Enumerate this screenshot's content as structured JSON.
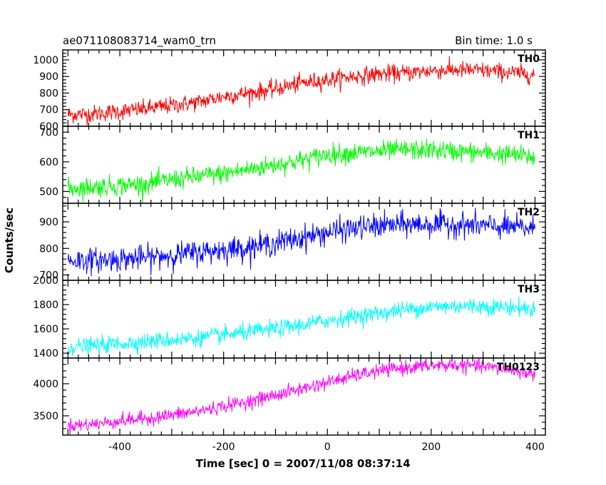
{
  "chart_data": {
    "type": "line",
    "title": "ae071108083714_wam0_trn",
    "subtitle": "Bin time: 1.0 s",
    "xlabel": "Time [sec] 0 = 2007/11/08 08:37:14",
    "ylabel": "Counts/sec",
    "xlim": [
      -510,
      420
    ],
    "xticks": [
      -400,
      -200,
      0,
      200,
      400
    ],
    "grid": false,
    "legend": "per-panel label, top-right",
    "panels": [
      {
        "name": "TH0",
        "color": "#ff0000",
        "ylim": [
          600,
          1060
        ],
        "yticks": [
          600,
          700,
          800,
          900,
          1000
        ],
        "noise": 34,
        "x": [
          -500,
          -450,
          -400,
          -350,
          -300,
          -250,
          -200,
          -150,
          -100,
          -50,
          0,
          50,
          100,
          150,
          200,
          250,
          300,
          350,
          400
        ],
        "y": [
          670,
          675,
          690,
          705,
          725,
          745,
          780,
          800,
          825,
          860,
          880,
          900,
          915,
          920,
          935,
          940,
          935,
          925,
          910
        ]
      },
      {
        "name": "TH1",
        "color": "#00ff00",
        "ylim": [
          460,
          720
        ],
        "yticks": [
          500,
          600,
          700
        ],
        "noise": 22,
        "x": [
          -500,
          -450,
          -400,
          -350,
          -300,
          -250,
          -200,
          -150,
          -100,
          -50,
          0,
          50,
          100,
          150,
          200,
          250,
          300,
          350,
          400
        ],
        "y": [
          510,
          515,
          520,
          525,
          540,
          550,
          560,
          575,
          590,
          605,
          625,
          630,
          635,
          640,
          640,
          635,
          630,
          625,
          615
        ]
      },
      {
        "name": "TH2",
        "color": "#0000ff",
        "ylim": [
          680,
          970
        ],
        "yticks": [
          700,
          800,
          900
        ],
        "noise": 30,
        "x": [
          -500,
          -450,
          -400,
          -350,
          -300,
          -250,
          -200,
          -150,
          -100,
          -50,
          0,
          50,
          100,
          150,
          200,
          250,
          300,
          350,
          400
        ],
        "y": [
          755,
          755,
          760,
          765,
          775,
          785,
          795,
          805,
          820,
          840,
          860,
          875,
          885,
          890,
          890,
          890,
          885,
          880,
          875
        ]
      },
      {
        "name": "TH3",
        "color": "#00ffff",
        "ylim": [
          1360,
          2000
        ],
        "yticks": [
          1400,
          1600,
          1800,
          2000
        ],
        "noise": 45,
        "x": [
          -500,
          -450,
          -400,
          -350,
          -300,
          -250,
          -200,
          -150,
          -100,
          -50,
          0,
          50,
          100,
          150,
          200,
          250,
          300,
          350,
          400
        ],
        "y": [
          1450,
          1460,
          1480,
          1495,
          1510,
          1525,
          1550,
          1575,
          1600,
          1630,
          1670,
          1700,
          1730,
          1760,
          1780,
          1790,
          1785,
          1780,
          1760
        ]
      },
      {
        "name": "TH0123",
        "color": "#ff00ff",
        "ylim": [
          3200,
          4400
        ],
        "yticks": [
          3500,
          4000
        ],
        "noise": 70,
        "x": [
          -500,
          -450,
          -400,
          -350,
          -300,
          -250,
          -200,
          -150,
          -100,
          -50,
          0,
          50,
          100,
          150,
          200,
          250,
          300,
          350,
          400
        ],
        "y": [
          3350,
          3370,
          3420,
          3460,
          3510,
          3570,
          3650,
          3730,
          3820,
          3920,
          4020,
          4120,
          4200,
          4250,
          4280,
          4290,
          4270,
          4220,
          4150
        ]
      }
    ]
  }
}
